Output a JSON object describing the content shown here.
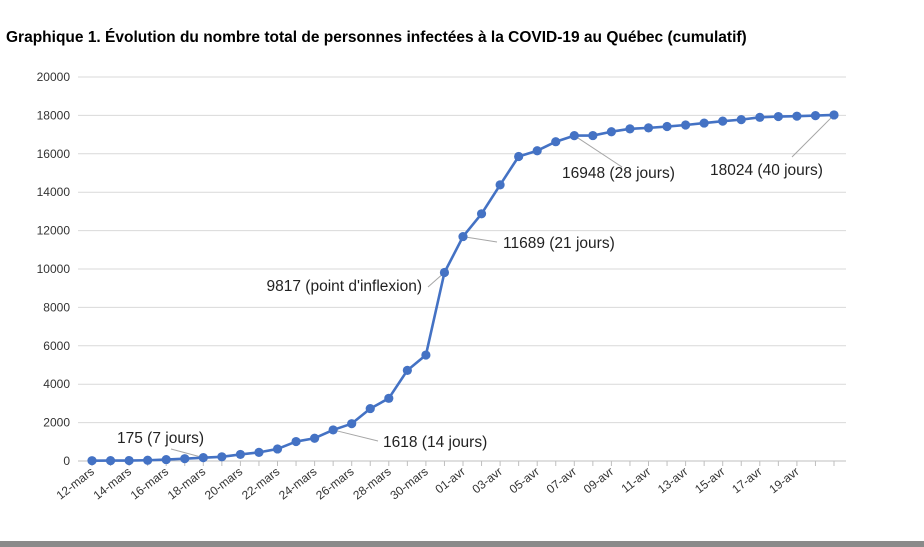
{
  "chart_data": {
    "type": "line",
    "title": "Graphique 1. Évolution du nombre total de personnes infectées à la COVID-19 au Québec (cumulatif)",
    "xlabel": "",
    "ylabel": "",
    "ylim": [
      0,
      20000
    ],
    "yticks": [
      0,
      2000,
      4000,
      6000,
      8000,
      10000,
      12000,
      14000,
      16000,
      18000,
      20000
    ],
    "grid": true,
    "legend": "none",
    "color": "#4472c4",
    "x": [
      "12-mars",
      "13-mars",
      "14-mars",
      "15-mars",
      "16-mars",
      "17-mars",
      "18-mars",
      "19-mars",
      "20-mars",
      "21-mars",
      "22-mars",
      "23-mars",
      "24-mars",
      "25-mars",
      "26-mars",
      "27-mars",
      "28-mars",
      "29-mars",
      "30-mars",
      "31-mars",
      "01-avr",
      "02-avr",
      "03-avr",
      "04-avr",
      "05-avr",
      "06-avr",
      "07-avr",
      "08-avr",
      "09-avr",
      "10-avr",
      "11-avr",
      "12-avr",
      "13-avr",
      "14-avr",
      "15-avr",
      "16-avr",
      "17-avr",
      "18-avr",
      "19-avr",
      "20-avr",
      "21-avr"
    ],
    "xtick_labels": [
      "12-mars",
      "14-mars",
      "16-mars",
      "18-mars",
      "20-mars",
      "22-mars",
      "24-mars",
      "26-mars",
      "28-mars",
      "30-mars",
      "01-avr",
      "03-avr",
      "05-avr",
      "07-avr",
      "09-avr",
      "11-avr",
      "13-avr",
      "15-avr",
      "17-avr",
      "19-avr"
    ],
    "values": [
      17,
      21,
      24,
      39,
      74,
      121,
      175,
      219,
      342,
      450,
      628,
      1013,
      1186,
      1618,
      1944,
      2730,
      3265,
      4722,
      5518,
      9817,
      11689,
      12875,
      14380,
      15860,
      16160,
      16630,
      16948,
      16950,
      17150,
      17300,
      17350,
      17420,
      17500,
      17600,
      17700,
      17780,
      17900,
      17940,
      17960,
      17990,
      18024
    ],
    "annotations": [
      {
        "text": "175 (7 jours)",
        "index": 6
      },
      {
        "text": "1618 (14 jours)",
        "index": 13
      },
      {
        "text": "9817 (point d'inflexion)",
        "index": 19
      },
      {
        "text": "11689 (21 jours)",
        "index": 20
      },
      {
        "text": "16948 (28 jours)",
        "index": 26
      },
      {
        "text": "18024 (40 jours)",
        "index": 40
      }
    ]
  }
}
